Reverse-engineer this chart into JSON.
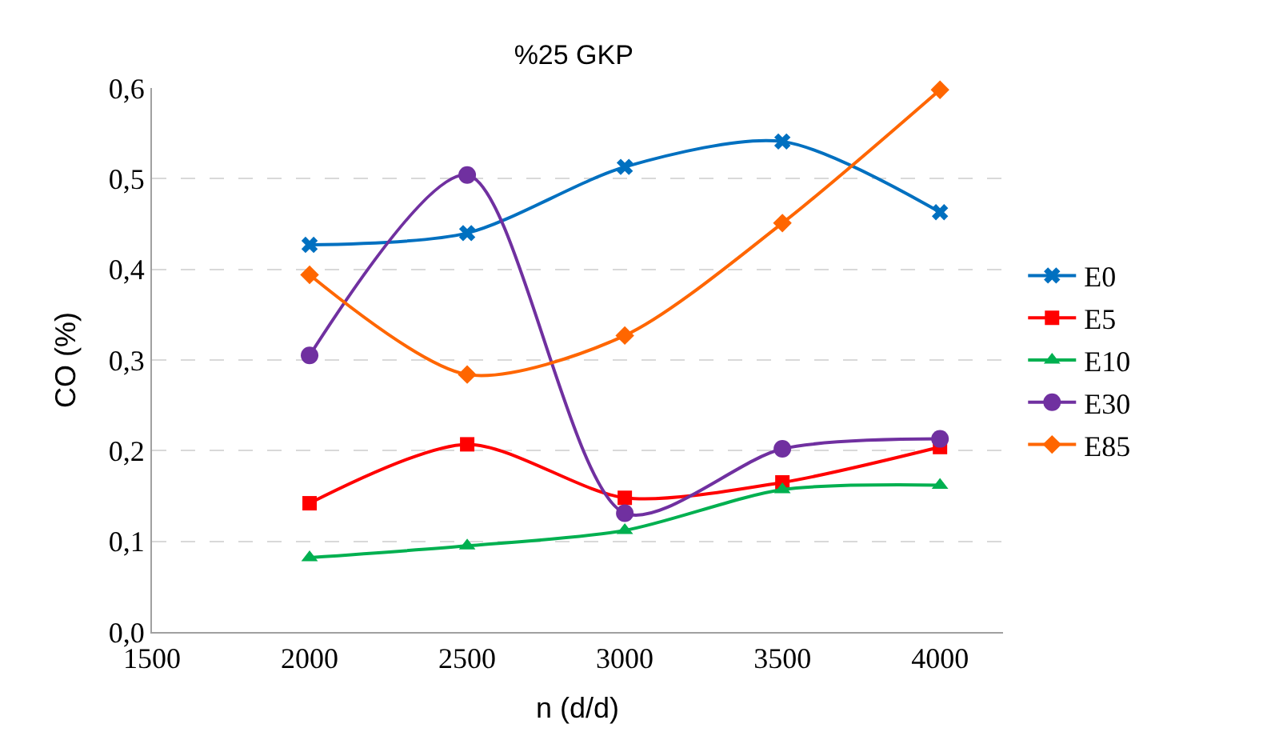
{
  "chart_data": {
    "type": "line",
    "title": "%25 GKP",
    "xlabel": "n (d/d)",
    "ylabel": "CO (%)",
    "x": [
      2000,
      2500,
      3000,
      3500,
      4000
    ],
    "series": [
      {
        "name": "E0",
        "color": "#0070c0",
        "marker": "cross",
        "values": [
          0.427,
          0.44,
          0.513,
          0.541,
          0.463
        ]
      },
      {
        "name": "E5",
        "color": "#ff0000",
        "marker": "square",
        "values": [
          0.142,
          0.207,
          0.148,
          0.165,
          0.204
        ]
      },
      {
        "name": "E10",
        "color": "#00b050",
        "marker": "triangle",
        "values": [
          0.082,
          0.095,
          0.112,
          0.157,
          0.162
        ]
      },
      {
        "name": "E30",
        "color": "#7030a0",
        "marker": "circle",
        "values": [
          0.305,
          0.504,
          0.131,
          0.202,
          0.213
        ]
      },
      {
        "name": "E85",
        "color": "#ff6600",
        "marker": "diamond",
        "values": [
          0.394,
          0.284,
          0.327,
          0.451,
          0.598
        ]
      }
    ],
    "xlim": [
      1500,
      4200
    ],
    "xticks": [
      1500,
      2000,
      2500,
      3000,
      3500,
      4000
    ],
    "ylim": [
      0,
      0.6
    ],
    "yticks": [
      {
        "value": 0,
        "label": "0,0"
      },
      {
        "value": 0.1,
        "label": "0,1"
      },
      {
        "value": 0.2,
        "label": "0,2"
      },
      {
        "value": 0.3,
        "label": "0,3"
      },
      {
        "value": 0.4,
        "label": "0,4"
      },
      {
        "value": 0.5,
        "label": "0,5"
      },
      {
        "value": 0.6,
        "label": "0,6"
      }
    ],
    "grid": "y",
    "legend": "right",
    "line_style": "solid"
  }
}
